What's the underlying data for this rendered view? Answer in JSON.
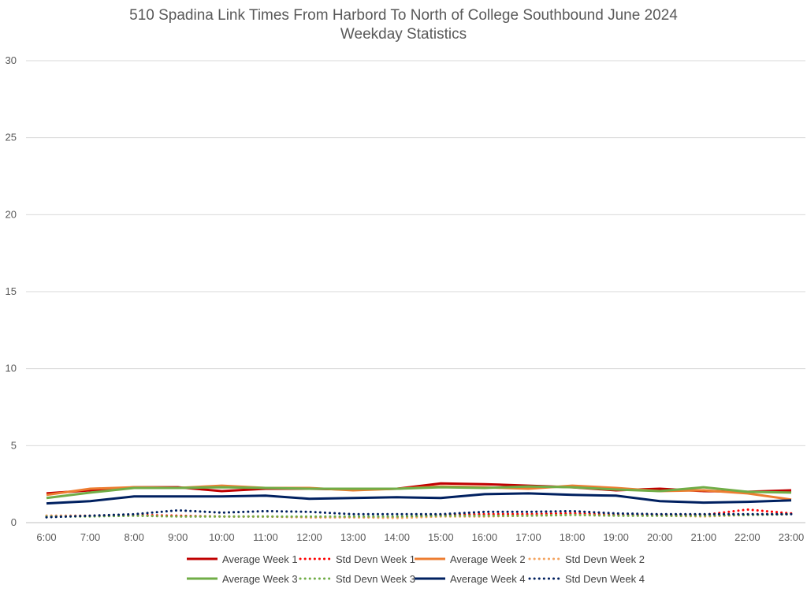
{
  "chart_data": {
    "type": "line",
    "title": "510 Spadina Link Times From Harbord To North of College Southbound June 2024",
    "subtitle": "Weekday Statistics",
    "xlabel": "",
    "ylabel": "",
    "ylim": [
      0,
      30
    ],
    "yticks": [
      0,
      5,
      10,
      15,
      20,
      25,
      30
    ],
    "grid": "horizontal",
    "legend_position": "bottom",
    "categories": [
      "6:00",
      "7:00",
      "8:00",
      "9:00",
      "10:00",
      "11:00",
      "12:00",
      "13:00",
      "14:00",
      "15:00",
      "16:00",
      "17:00",
      "18:00",
      "19:00",
      "20:00",
      "21:00",
      "22:00",
      "23:00"
    ],
    "series": [
      {
        "name": "Average Week 1",
        "style": "solid",
        "color": "#c00000",
        "values": [
          1.9,
          2.1,
          2.3,
          2.3,
          2.05,
          2.2,
          2.2,
          2.15,
          2.2,
          2.55,
          2.5,
          2.4,
          2.3,
          2.1,
          2.2,
          2.05,
          2.0,
          2.1
        ]
      },
      {
        "name": "Std Devn Week 1",
        "style": "dotted",
        "color": "#ff0000",
        "values": [
          0.45,
          0.45,
          0.5,
          0.45,
          0.4,
          0.4,
          0.35,
          0.35,
          0.35,
          0.5,
          0.55,
          0.55,
          0.6,
          0.5,
          0.5,
          0.5,
          0.85,
          0.6
        ]
      },
      {
        "name": "Average Week 2",
        "style": "solid",
        "color": "#ed7d31",
        "values": [
          1.8,
          2.2,
          2.3,
          2.25,
          2.4,
          2.25,
          2.25,
          2.1,
          2.2,
          2.35,
          2.3,
          2.2,
          2.4,
          2.25,
          2.05,
          2.1,
          1.9,
          1.5
        ]
      },
      {
        "name": "Std Devn Week 2",
        "style": "dotted",
        "color": "#f4a460",
        "values": [
          0.45,
          0.45,
          0.45,
          0.4,
          0.4,
          0.4,
          0.35,
          0.35,
          0.3,
          0.4,
          0.4,
          0.45,
          0.5,
          0.45,
          0.45,
          0.4,
          0.5,
          0.55
        ]
      },
      {
        "name": "Average Week 3",
        "style": "solid",
        "color": "#70ad47",
        "values": [
          1.6,
          1.95,
          2.25,
          2.25,
          2.3,
          2.25,
          2.2,
          2.2,
          2.2,
          2.3,
          2.25,
          2.35,
          2.3,
          2.15,
          2.05,
          2.3,
          2.0,
          1.95
        ]
      },
      {
        "name": "Std Devn Week 3",
        "style": "dotted",
        "color": "#70ad47",
        "values": [
          0.4,
          0.4,
          0.45,
          0.4,
          0.4,
          0.4,
          0.4,
          0.4,
          0.4,
          0.45,
          0.45,
          0.45,
          0.5,
          0.45,
          0.45,
          0.45,
          0.5,
          0.55
        ]
      },
      {
        "name": "Average Week 4",
        "style": "solid",
        "color": "#002060",
        "values": [
          1.25,
          1.4,
          1.7,
          1.7,
          1.7,
          1.75,
          1.55,
          1.6,
          1.65,
          1.6,
          1.85,
          1.9,
          1.8,
          1.75,
          1.4,
          1.3,
          1.35,
          1.45
        ]
      },
      {
        "name": "Std Devn Week 4",
        "style": "dotted",
        "color": "#002060",
        "values": [
          0.35,
          0.45,
          0.55,
          0.8,
          0.65,
          0.75,
          0.7,
          0.55,
          0.55,
          0.55,
          0.7,
          0.7,
          0.75,
          0.6,
          0.55,
          0.55,
          0.55,
          0.55
        ]
      }
    ]
  }
}
